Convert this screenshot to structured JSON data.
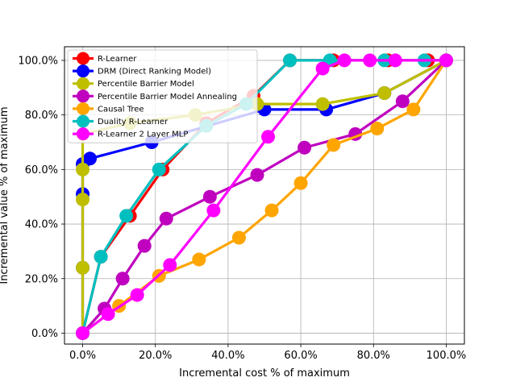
{
  "chart_data": {
    "type": "line",
    "xlabel": "Incremental cost % of maximum",
    "ylabel": "Incremental value % of maximum",
    "xlim": [
      -5,
      105
    ],
    "ylim": [
      -4,
      105
    ],
    "xticks": [
      0,
      20,
      40,
      60,
      80,
      100
    ],
    "yticks": [
      0,
      20,
      40,
      60,
      80,
      100
    ],
    "xtick_labels": [
      "0.0%",
      "20.0%",
      "40.0%",
      "60.0%",
      "80.0%",
      "100.0%"
    ],
    "ytick_labels": [
      "0.0%",
      "20.0%",
      "40.0%",
      "60.0%",
      "80.0%",
      "100.0%"
    ],
    "grid": true,
    "legend_position": "top-left",
    "series": [
      {
        "name": "R-Learner",
        "color": "#ff0000",
        "x": [
          0,
          5,
          13,
          22,
          34,
          47,
          57,
          69,
          84,
          95,
          100
        ],
        "y": [
          0,
          28,
          43,
          60,
          77,
          87,
          100,
          100,
          100,
          100,
          100
        ]
      },
      {
        "name": "DRM (Direct Ranking Model)",
        "color": "#0000ff",
        "x": [
          0,
          0,
          0,
          0,
          2,
          19,
          50,
          67,
          83,
          100
        ],
        "y": [
          0,
          24,
          51,
          62,
          64,
          70,
          82,
          82,
          88,
          100
        ]
      },
      {
        "name": "Percentile Barrier Model",
        "color": "#bfbf00",
        "x": [
          0,
          0,
          0,
          0,
          0,
          13,
          31,
          48,
          66,
          83,
          100
        ],
        "y": [
          0,
          24,
          49,
          60,
          73,
          77,
          80,
          84,
          84,
          88,
          100
        ]
      },
      {
        "name": "Percentile Barrier Model Annealing",
        "color": "#bf00bf",
        "x": [
          0,
          6,
          11,
          17,
          23,
          35,
          48,
          61,
          75,
          88,
          100
        ],
        "y": [
          0,
          9,
          20,
          32,
          42,
          50,
          58,
          68,
          73,
          85,
          100
        ]
      },
      {
        "name": "Causal Tree",
        "color": "#ffa500",
        "x": [
          0,
          10,
          21,
          32,
          43,
          52,
          60,
          69,
          81,
          91,
          100
        ],
        "y": [
          0,
          10,
          21,
          27,
          35,
          45,
          55,
          69,
          75,
          82,
          100
        ]
      },
      {
        "name": "Duality R-Learner",
        "color": "#00bfbf",
        "x": [
          0,
          5,
          12,
          21,
          34,
          45,
          57,
          68,
          83,
          94,
          100
        ],
        "y": [
          0,
          28,
          43,
          60,
          76,
          84,
          100,
          100,
          100,
          100,
          100
        ]
      },
      {
        "name": "R-Learner 2 Layer MLP",
        "color": "#ff00ff",
        "x": [
          0,
          7,
          15,
          24,
          36,
          51,
          66,
          72,
          79,
          86,
          100
        ],
        "y": [
          0,
          7,
          14,
          25,
          45,
          72,
          97,
          100,
          100,
          100,
          100
        ]
      }
    ]
  }
}
